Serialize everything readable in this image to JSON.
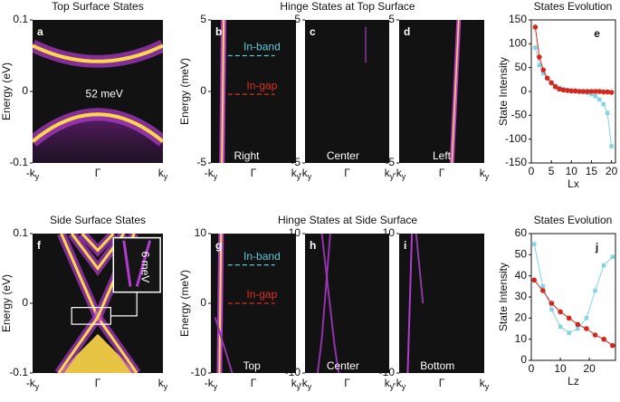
{
  "chart_data": [
    {
      "type": "heatmap",
      "title": "Top Surface States",
      "panel": "a",
      "ylabel": "Energy (eV)",
      "ylim": [
        -0.1,
        0.1
      ],
      "yticks": [
        -0.1,
        0,
        0.1
      ],
      "categories": [
        "-ky",
        "Γ",
        "ky"
      ],
      "annotations": [
        "52 meV"
      ]
    },
    {
      "type": "heatmap",
      "title": "Hinge States at Top Surface",
      "panel": "b",
      "ylabel": "Energy (meV)",
      "ylim": [
        -5,
        5
      ],
      "yticks": [
        -5,
        0,
        5
      ],
      "categories": [
        "-ky",
        "Γ",
        "ky"
      ],
      "levels": [
        {
          "label": "In-band",
          "y": 2.5,
          "color": "#5bc8d8"
        },
        {
          "label": "In-gap",
          "y": -0.2,
          "color": "#e0301e"
        }
      ],
      "annotations": [
        "Right"
      ]
    },
    {
      "type": "heatmap",
      "panel": "c",
      "ylim": [
        -5,
        5
      ],
      "yticks": [
        -5,
        5
      ],
      "categories": [
        "-ky",
        "Γ",
        "ky"
      ],
      "annotations": [
        "Center"
      ]
    },
    {
      "type": "heatmap",
      "panel": "d",
      "ylim": [
        -5,
        5
      ],
      "yticks": [
        -5,
        5
      ],
      "categories": [
        "-ky",
        "Γ",
        "ky"
      ],
      "annotations": [
        "Left"
      ]
    },
    {
      "type": "line",
      "title": "States Evolution",
      "panel": "e",
      "xlabel": "Lx",
      "ylabel": "State Intensity",
      "x": [
        1,
        2,
        3,
        4,
        5,
        6,
        7,
        8,
        9,
        10,
        11,
        12,
        13,
        14,
        15,
        16,
        17,
        18,
        19,
        20
      ],
      "series": [
        {
          "color": "#7fd3e6",
          "marker": "square",
          "values": [
            92,
            55,
            38,
            28,
            20,
            12,
            8,
            5,
            3,
            2,
            1,
            0,
            -1,
            -3,
            -6,
            -10,
            -17,
            -27,
            -45,
            -115
          ]
        },
        {
          "color": "#d7261b",
          "marker": "circle",
          "values": [
            135,
            72,
            45,
            28,
            18,
            10,
            5,
            3,
            2,
            1,
            1,
            0,
            0,
            0,
            0,
            0,
            0,
            -1,
            -1,
            -2
          ]
        }
      ],
      "xlim": [
        0,
        21
      ],
      "xticks": [
        0,
        5,
        10,
        15,
        20
      ],
      "ylim": [
        -150,
        150
      ],
      "yticks": [
        -150,
        -100,
        -50,
        0,
        50,
        100,
        150
      ]
    },
    {
      "type": "heatmap",
      "title": "Side Surface States",
      "panel": "f",
      "ylabel": "Energy (eV)",
      "ylim": [
        -0.1,
        0.1
      ],
      "yticks": [
        -0.1,
        0,
        0.1
      ],
      "categories": [
        "-ky",
        "Γ",
        "ky"
      ],
      "annotations": [
        "6 meV"
      ]
    },
    {
      "type": "heatmap",
      "title": "Hinge States at Side Surface",
      "panel": "g",
      "ylabel": "Energy (meV)",
      "ylim": [
        -10,
        10
      ],
      "yticks": [
        -10,
        0,
        10
      ],
      "categories": [
        "-ky",
        "Γ",
        "ky"
      ],
      "levels": [
        {
          "label": "In-band",
          "y": 5.5,
          "color": "#5bc8d8"
        },
        {
          "label": "In-gap",
          "y": 0,
          "color": "#e0301e"
        }
      ],
      "annotations": [
        "Top"
      ]
    },
    {
      "type": "heatmap",
      "panel": "h",
      "ylim": [
        -10,
        10
      ],
      "yticks": [
        -10,
        10
      ],
      "categories": [
        "-ky",
        "Γ",
        "ky"
      ],
      "annotations": [
        "Center"
      ]
    },
    {
      "type": "heatmap",
      "panel": "i",
      "ylim": [
        -10,
        10
      ],
      "yticks": [
        -10,
        10
      ],
      "categories": [
        "-ky",
        "Γ",
        "ky"
      ],
      "annotations": [
        "Bottom"
      ]
    },
    {
      "type": "line",
      "title": "States Evolution",
      "panel": "j",
      "xlabel": "Lz",
      "ylabel": "State Intensity",
      "x": [
        1,
        4,
        7,
        10,
        13,
        16,
        19,
        22,
        25,
        28
      ],
      "series": [
        {
          "color": "#7fd3e6",
          "marker": "square",
          "values": [
            55,
            35,
            24,
            16,
            13,
            15,
            20,
            33,
            45,
            49
          ]
        },
        {
          "color": "#d7261b",
          "marker": "circle",
          "values": [
            38,
            33,
            27,
            23,
            20,
            17,
            15,
            12,
            10,
            7
          ]
        }
      ],
      "xlim": [
        0,
        29
      ],
      "xticks": [
        0,
        10,
        20
      ],
      "ylim": [
        0,
        60
      ],
      "yticks": [
        0,
        10,
        20,
        30,
        40,
        50,
        60
      ]
    }
  ]
}
